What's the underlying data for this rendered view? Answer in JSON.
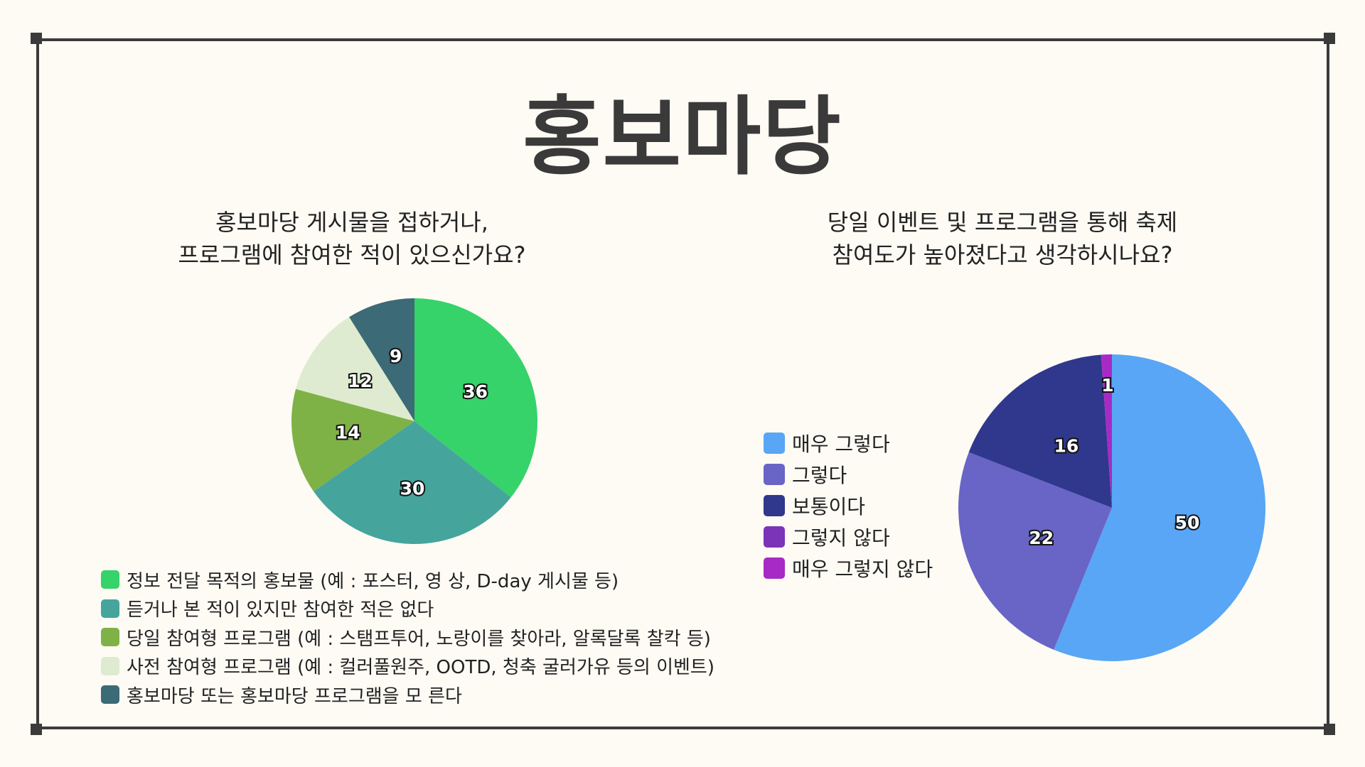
{
  "title": "홍보마당",
  "colors": {
    "frame": "#3b3b3b",
    "background": "#fdfbf4"
  },
  "chart_data": [
    {
      "type": "pie",
      "title_lines": [
        "홍보마당 게시물을 접하거나,",
        "프로그램에 참여한 적이 있으신가요?"
      ],
      "categories": [
        "정보 전달 목적의 홍보물 (예 : 포스터, 영 상, D-day 게시물 등)",
        "듣거나 본 적이 있지만 참여한 적은 없다",
        "당일 참여형 프로그램 (예 : 스탬프투어, 노랑이를 찾아라, 알록달록 찰칵 등)",
        "사전 참여형 프로그램 (예 : 컬러풀원주, OOTD, 청축 굴러가유 등의 이벤트)",
        "홍보마당 또는 홍보마당 프로그램을 모 른다"
      ],
      "values": [
        36,
        30,
        14,
        12,
        9
      ],
      "colors": [
        "#36d26a",
        "#45a59c",
        "#7fb246",
        "#deebd0",
        "#3c6a76"
      ],
      "legend_position": "bottom"
    },
    {
      "type": "pie",
      "title_lines": [
        "당일 이벤트 및 프로그램을 통해 축제",
        "참여도가 높아졌다고 생각하시나요?"
      ],
      "categories": [
        "매우 그렇다",
        "그렇다",
        "보통이다",
        "그렇지 않다",
        "매우 그렇지 않다"
      ],
      "values": [
        50,
        22,
        16,
        0,
        1
      ],
      "colors": [
        "#58a6f5",
        "#6865c7",
        "#2f388c",
        "#7b34b8",
        "#a72ac6"
      ],
      "legend_position": "left"
    }
  ]
}
